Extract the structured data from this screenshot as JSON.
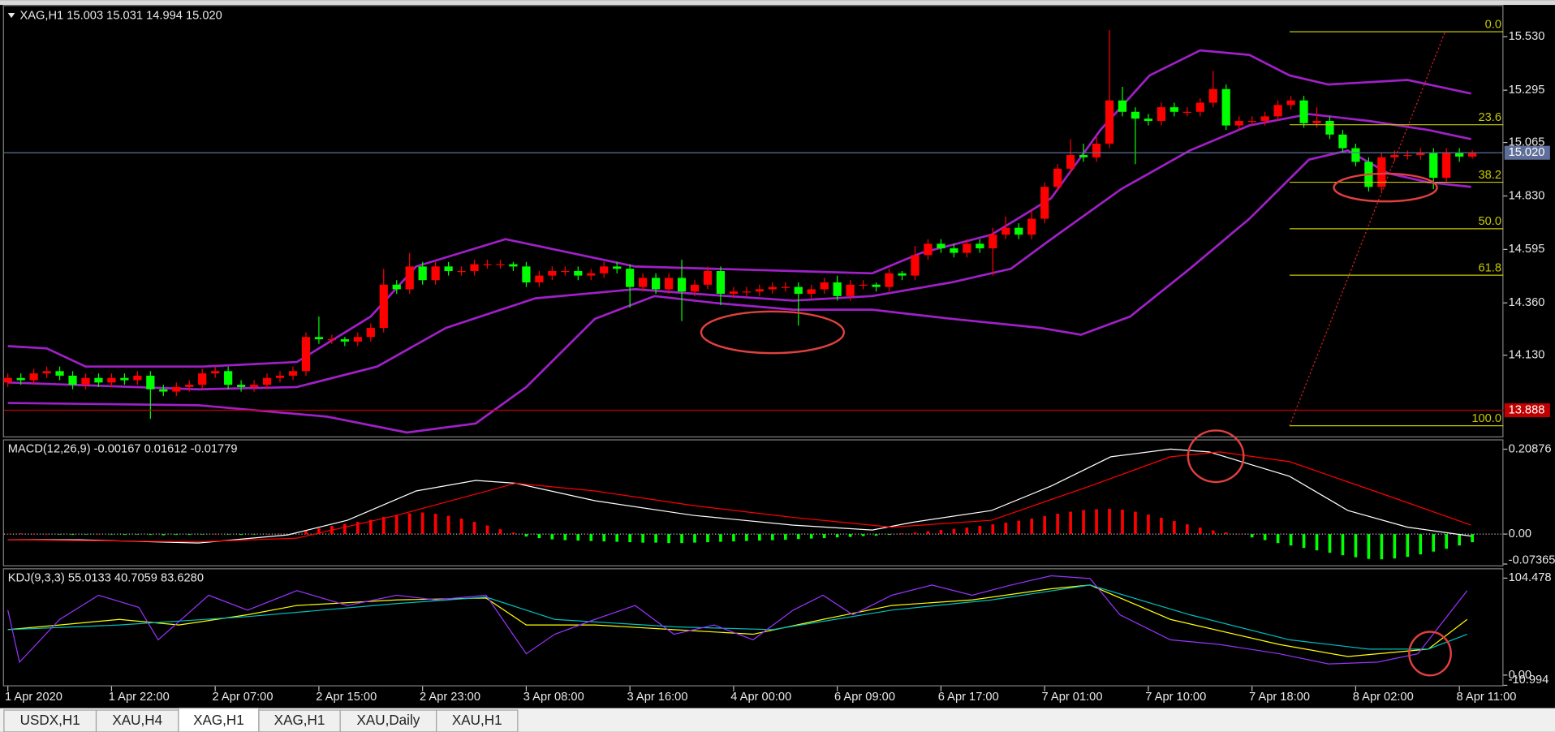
{
  "chart_data": [
    {
      "type": "candlestick",
      "title": "XAG,H1  15.003 15.031 14.994 15.020",
      "open": [
        14.01,
        14.03,
        14.02,
        14.05,
        14.06,
        14.04,
        14.0,
        14.03,
        14.01,
        14.03,
        14.02,
        14.04,
        13.98,
        13.97,
        13.99,
        14.0,
        14.05,
        14.06,
        14.0,
        13.99,
        14.0,
        14.03,
        14.04,
        14.06,
        14.21,
        14.2,
        14.2,
        14.19,
        14.21,
        14.25,
        14.44,
        14.42,
        14.52,
        14.46,
        14.52,
        14.5,
        14.5,
        14.53,
        14.53,
        14.53,
        14.52,
        14.45,
        14.48,
        14.5,
        14.5,
        14.48,
        14.49,
        14.52,
        14.51,
        14.43,
        14.47,
        14.42,
        14.47,
        14.41,
        14.44,
        14.5,
        14.4,
        14.41,
        14.41,
        14.42,
        14.43,
        14.43,
        14.4,
        14.42,
        14.45,
        14.39,
        14.44,
        14.44,
        14.43,
        14.49,
        14.48,
        14.57,
        14.62,
        14.6,
        14.58,
        14.62,
        14.6,
        14.66,
        14.69,
        14.66,
        14.73,
        14.87,
        14.95,
        15.01,
        15.0,
        15.06,
        15.25,
        15.2,
        15.17,
        15.16,
        15.22,
        15.2,
        15.2,
        15.24,
        15.3,
        15.14,
        15.16,
        15.16,
        15.18,
        15.23,
        15.25,
        15.15,
        15.16,
        15.1,
        15.04,
        14.98,
        14.87,
        15.0,
        15.01,
        15.01,
        15.02,
        14.91,
        15.02,
        15.003
      ],
      "high": [
        14.05,
        14.05,
        14.07,
        14.08,
        14.08,
        14.06,
        14.05,
        14.05,
        14.05,
        14.05,
        14.06,
        14.06,
        14.0,
        14.01,
        14.02,
        14.07,
        14.08,
        14.08,
        14.02,
        14.02,
        14.05,
        14.06,
        14.08,
        14.23,
        14.3,
        14.22,
        14.21,
        14.23,
        14.27,
        14.51,
        14.46,
        14.58,
        14.54,
        14.54,
        14.54,
        14.52,
        14.55,
        14.55,
        14.55,
        14.54,
        14.54,
        14.5,
        14.52,
        14.52,
        14.52,
        14.51,
        14.54,
        14.54,
        14.53,
        14.49,
        14.49,
        14.49,
        14.55,
        14.46,
        14.52,
        14.52,
        14.43,
        14.43,
        14.44,
        14.45,
        14.45,
        14.45,
        14.44,
        14.47,
        14.48,
        14.46,
        14.46,
        14.45,
        14.51,
        14.5,
        14.61,
        14.64,
        14.64,
        14.62,
        14.64,
        14.64,
        14.69,
        14.74,
        14.71,
        14.77,
        14.89,
        14.97,
        15.08,
        15.06,
        15.09,
        15.56,
        15.31,
        15.22,
        15.19,
        15.24,
        15.24,
        15.22,
        15.26,
        15.38,
        15.32,
        15.18,
        15.18,
        15.2,
        15.25,
        15.27,
        15.27,
        15.22,
        15.18,
        15.12,
        15.06,
        15.0,
        15.02,
        15.03,
        15.03,
        15.04,
        15.04,
        15.04,
        15.04,
        15.031
      ],
      "low": [
        13.99,
        14.0,
        14.0,
        14.03,
        14.02,
        13.98,
        13.98,
        13.99,
        13.99,
        14.0,
        14.0,
        13.85,
        13.95,
        13.95,
        13.97,
        13.98,
        14.03,
        13.98,
        13.97,
        13.97,
        13.98,
        14.01,
        14.02,
        14.04,
        14.18,
        14.18,
        14.17,
        14.17,
        14.19,
        14.23,
        14.4,
        14.4,
        14.44,
        14.44,
        14.48,
        14.48,
        14.48,
        14.51,
        14.51,
        14.5,
        14.43,
        14.43,
        14.46,
        14.48,
        14.46,
        14.46,
        14.47,
        14.49,
        14.34,
        14.41,
        14.4,
        14.4,
        14.28,
        14.39,
        14.42,
        14.35,
        14.38,
        14.39,
        14.39,
        14.4,
        14.41,
        14.26,
        14.38,
        14.4,
        14.37,
        14.37,
        14.42,
        14.41,
        14.41,
        14.46,
        14.46,
        14.55,
        14.58,
        14.56,
        14.56,
        14.58,
        14.48,
        14.64,
        14.64,
        14.64,
        14.71,
        14.85,
        14.93,
        14.98,
        14.98,
        15.04,
        15.18,
        14.97,
        15.14,
        15.14,
        15.18,
        15.18,
        15.18,
        15.22,
        15.12,
        15.12,
        15.14,
        15.14,
        15.16,
        15.21,
        15.13,
        15.13,
        15.08,
        15.02,
        14.96,
        14.85,
        14.85,
        14.98,
        14.99,
        14.99,
        14.86,
        14.89,
        14.98,
        14.994
      ],
      "close": [
        14.03,
        14.02,
        14.05,
        14.06,
        14.04,
        14.0,
        14.03,
        14.01,
        14.03,
        14.02,
        14.04,
        13.98,
        13.97,
        13.99,
        14.0,
        14.05,
        14.06,
        14.0,
        13.99,
        14.0,
        14.03,
        14.04,
        14.06,
        14.21,
        14.2,
        14.2,
        14.19,
        14.21,
        14.25,
        14.44,
        14.42,
        14.52,
        14.46,
        14.52,
        14.5,
        14.5,
        14.53,
        14.53,
        14.53,
        14.52,
        14.45,
        14.48,
        14.5,
        14.5,
        14.48,
        14.49,
        14.52,
        14.51,
        14.43,
        14.47,
        14.42,
        14.47,
        14.41,
        14.44,
        14.5,
        14.4,
        14.41,
        14.41,
        14.42,
        14.43,
        14.43,
        14.4,
        14.42,
        14.45,
        14.39,
        14.44,
        14.44,
        14.43,
        14.49,
        14.48,
        14.57,
        14.62,
        14.6,
        14.58,
        14.62,
        14.6,
        14.66,
        14.69,
        14.66,
        14.73,
        14.87,
        14.95,
        15.01,
        15.0,
        15.06,
        15.25,
        15.2,
        15.17,
        15.16,
        15.22,
        15.2,
        15.2,
        15.24,
        15.3,
        15.14,
        15.16,
        15.16,
        15.18,
        15.23,
        15.25,
        15.15,
        15.16,
        15.1,
        15.04,
        14.98,
        14.87,
        15.0,
        15.01,
        15.01,
        15.02,
        14.91,
        15.02,
        15.003,
        15.02
      ],
      "up_color": "#ff0000",
      "down_color": "#00ff00",
      "series": [
        {
          "color": "#a020c8",
          "x": [
            0,
            3,
            6,
            15,
            22.3,
            28,
            31.5,
            38.4,
            48.4,
            60.6,
            66.7,
            70.5,
            75.9,
            80.5,
            84.3,
            88.1,
            92,
            95.8,
            98.9,
            101.9,
            108,
            112.9
          ],
          "values": [
            14.17,
            14.16,
            14.08,
            14.08,
            14.1,
            14.3,
            14.52,
            14.64,
            14.52,
            14.5,
            14.49,
            14.58,
            14.66,
            14.82,
            15.12,
            15.36,
            15.47,
            15.45,
            15.36,
            15.32,
            15.34,
            15.28
          ]
        },
        {
          "color": "#a020c8",
          "x": [
            0,
            14.7,
            22.3,
            28.5,
            33.8,
            40.7,
            48.4,
            53,
            60.6,
            66.7,
            72.8,
            77.4,
            80.5,
            85.9,
            91.2,
            95.8,
            100.4,
            105,
            109.6,
            112.9
          ],
          "values": [
            14.01,
            13.98,
            13.99,
            14.08,
            14.25,
            14.38,
            14.42,
            14.4,
            14.37,
            14.39,
            14.45,
            14.51,
            14.64,
            14.86,
            15.03,
            15.14,
            15.19,
            15.16,
            15.12,
            15.08
          ]
        },
        {
          "color": "#a020c8",
          "x": [
            0,
            14.7,
            24.6,
            30.8,
            36.1,
            40,
            45.3,
            49.9,
            54.5,
            60.6,
            66.7,
            72.8,
            79.7,
            82.8,
            86.6,
            91.2,
            95.8,
            100.4,
            103.4,
            106.5,
            109.6,
            112.9
          ],
          "values": [
            13.92,
            13.91,
            13.86,
            13.79,
            13.83,
            13.99,
            14.29,
            14.39,
            14.36,
            14.33,
            14.33,
            14.29,
            14.25,
            14.22,
            14.3,
            14.51,
            14.73,
            14.99,
            15.03,
            14.93,
            14.89,
            14.87
          ]
        }
      ],
      "hlines": [
        {
          "value": 15.02,
          "label": "15.020",
          "color": "#5f6f9a"
        },
        {
          "value": 13.888,
          "color": "#c00000"
        }
      ],
      "fibonacci": {
        "high": 15.552,
        "low": 13.82,
        "start": 98.9,
        "end": 110.9,
        "color": "#c8c800",
        "line_color": "#d02020",
        "levels": [
          {
            "value": 0,
            "label": "0.0"
          },
          23.6,
          38.2,
          {
            "value": 50,
            "label": "50.0"
          },
          61.8,
          {
            "value": 100,
            "label": "100.0"
          }
        ]
      },
      "xlim": [
        -0.3,
        115.4
      ],
      "xticks": [
        {
          "value": 0,
          "label": "1 Apr 2020"
        },
        {
          "value": 8,
          "label": "1 Apr 22:00"
        },
        {
          "value": 16,
          "label": "2 Apr 07:00"
        },
        {
          "value": 24,
          "label": "2 Apr 15:00"
        },
        {
          "value": 32,
          "label": "2 Apr 23:00"
        },
        {
          "value": 40,
          "label": "3 Apr 08:00"
        },
        {
          "value": 48,
          "label": "3 Apr 16:00"
        },
        {
          "value": 56,
          "label": "4 Apr 00:00"
        },
        {
          "value": 64,
          "label": "6 Apr 09:00"
        },
        {
          "value": 72,
          "label": "6 Apr 17:00"
        },
        {
          "value": 80,
          "label": "7 Apr 01:00"
        },
        {
          "value": 88,
          "label": "7 Apr 10:00"
        },
        {
          "value": 96,
          "label": "7 Apr 18:00"
        },
        {
          "value": 104,
          "label": "8 Apr 02:00"
        },
        {
          "value": 112,
          "label": "8 Apr 11:00"
        }
      ],
      "ylim": [
        13.773,
        15.665
      ],
      "yticks": [
        {
          "value": 15.53,
          "label": "15.530"
        },
        15.295,
        15.065,
        {
          "value": 14.83,
          "label": "14.830"
        },
        14.595,
        {
          "value": 14.36,
          "label": "14.360"
        },
        {
          "value": 14.13,
          "label": "14.130"
        }
      ]
    },
    {
      "type": "bar",
      "title": "MACD(12,26,9) -0.00167 0.01612 -0.01779",
      "values": [
        0.001,
        0.002,
        0.001,
        0.0,
        -0.001,
        -0.002,
        -0.001,
        0.0,
        -0.001,
        -0.002,
        -0.001,
        -0.002,
        -0.003,
        -0.002,
        -0.002,
        -0.001,
        0.0,
        -0.001,
        -0.002,
        -0.001,
        0.0,
        0.001,
        0.002,
        0.008,
        0.014,
        0.02,
        0.025,
        0.03,
        0.035,
        0.042,
        0.047,
        0.051,
        0.053,
        0.05,
        0.045,
        0.038,
        0.03,
        0.021,
        0.012,
        0.004,
        -0.006,
        -0.01,
        -0.013,
        -0.015,
        -0.016,
        -0.017,
        -0.018,
        -0.019,
        -0.02,
        -0.021,
        -0.021,
        -0.022,
        -0.022,
        -0.021,
        -0.02,
        -0.019,
        -0.018,
        -0.017,
        -0.016,
        -0.015,
        -0.014,
        -0.012,
        -0.011,
        -0.01,
        -0.008,
        -0.007,
        -0.005,
        -0.004,
        -0.002,
        0.002,
        0.004,
        0.007,
        0.01,
        0.013,
        0.016,
        0.02,
        0.024,
        0.028,
        0.033,
        0.038,
        0.044,
        0.05,
        0.055,
        0.059,
        0.061,
        0.062,
        0.06,
        0.055,
        0.048,
        0.04,
        0.032,
        0.024,
        0.016,
        0.009,
        0.004,
        0.001,
        -0.008,
        -0.015,
        -0.022,
        -0.028,
        -0.034,
        -0.04,
        -0.046,
        -0.052,
        -0.057,
        -0.061,
        -0.062,
        -0.06,
        -0.056,
        -0.05,
        -0.043,
        -0.036,
        -0.028,
        -0.02
      ],
      "up_color": "#ff0000",
      "down_color": "#00ff00",
      "series": [
        {
          "color": "#ffffff",
          "x": [
            0,
            5.5,
            14.7,
            21.6,
            26.2,
            31.5,
            36.1,
            39.2,
            45.3,
            52.9,
            60.6,
            66.7,
            69.8,
            75.9,
            80.5,
            85.1,
            89.7,
            92.7,
            98.9,
            103.4,
            108,
            112.9
          ],
          "values": [
            -0.014,
            -0.014,
            -0.022,
            -0.002,
            0.034,
            0.106,
            0.132,
            0.125,
            0.082,
            0.046,
            0.022,
            0.01,
            0.029,
            0.058,
            0.118,
            0.19,
            0.209,
            0.202,
            0.142,
            0.058,
            0.017,
            -0.005
          ]
        },
        {
          "color": "#ff0000",
          "x": [
            0,
            14.7,
            22.3,
            30,
            39.2,
            45.3,
            52.9,
            60.6,
            68.2,
            75.9,
            83.5,
            89.7,
            93.5,
            98.9,
            106.5,
            112.9
          ],
          "values": [
            -0.014,
            -0.019,
            -0.01,
            0.046,
            0.125,
            0.106,
            0.07,
            0.041,
            0.017,
            0.034,
            0.118,
            0.19,
            0.202,
            0.178,
            0.094,
            0.022
          ]
        }
      ],
      "level_lines": [
        0
      ],
      "ylim": [
        -0.0768,
        0.2304
      ],
      "yticks": [
        0.20876,
        {
          "value": 0,
          "label": "0.00"
        },
        -0.07365
      ]
    },
    {
      "type": "line",
      "title": "KDJ(9,3,3) 55.0133 40.7059 83.6280",
      "series": [
        {
          "color": "#ffff00",
          "x": [
            0,
            4,
            8.6,
            13.2,
            18.5,
            22.3,
            30,
            36.9,
            40,
            45.3,
            51.4,
            57.5,
            62.9,
            68.2,
            74.4,
            80.5,
            83.5,
            89.7,
            98.1,
            103.4,
            109.6,
            112.6
          ],
          "values": [
            49,
            54,
            60,
            54,
            65,
            75,
            81,
            83,
            54,
            54,
            49,
            44,
            60,
            75,
            81,
            93,
            97,
            60,
            33,
            20,
            28,
            60
          ]
        },
        {
          "color": "#00c0c0",
          "x": [
            0,
            8.6,
            18.5,
            30,
            36.9,
            42.2,
            51.4,
            59,
            68.2,
            75.9,
            83.5,
            91.2,
            98.9,
            105,
            109.6,
            112.6
          ],
          "values": [
            49,
            54,
            63,
            77,
            84,
            60,
            52,
            49,
            70,
            81,
            97,
            65,
            38,
            28,
            28,
            44
          ]
        },
        {
          "color": "#9933ff",
          "x": [
            0,
            0.9,
            4,
            7,
            10.1,
            11.6,
            15.5,
            18.5,
            22.3,
            26.2,
            30,
            33,
            36.9,
            40,
            42.2,
            45.3,
            48.4,
            51.4,
            54.5,
            57.5,
            60.6,
            62.9,
            65.2,
            68.2,
            71.3,
            74.4,
            77.4,
            80.5,
            83.5,
            85.8,
            89.7,
            93.5,
            98.1,
            101.9,
            105.7,
            108.8,
            112.6
          ],
          "values": [
            70,
            14,
            60,
            86,
            73,
            38,
            86,
            70,
            91,
            75,
            86,
            81,
            86,
            23,
            44,
            60,
            75,
            44,
            54,
            38,
            70,
            86,
            65,
            86,
            97,
            86,
            97,
            107,
            104,
            65,
            38,
            33,
            23,
            12,
            14,
            23,
            91
          ]
        }
      ],
      "ylim": [
        -10.994,
        113.97
      ],
      "yticks": [
        104.478,
        {
          "value": 0,
          "label": "0.00"
        },
        -10.994
      ]
    }
  ],
  "tabs": [
    {
      "label": "USDX,H1"
    },
    {
      "label": "XAU,H4"
    },
    {
      "label": "XAG,H1",
      "active": true
    },
    {
      "label": "XAG,H1"
    },
    {
      "label": "XAU,Daily"
    },
    {
      "label": "XAU,H1"
    }
  ]
}
